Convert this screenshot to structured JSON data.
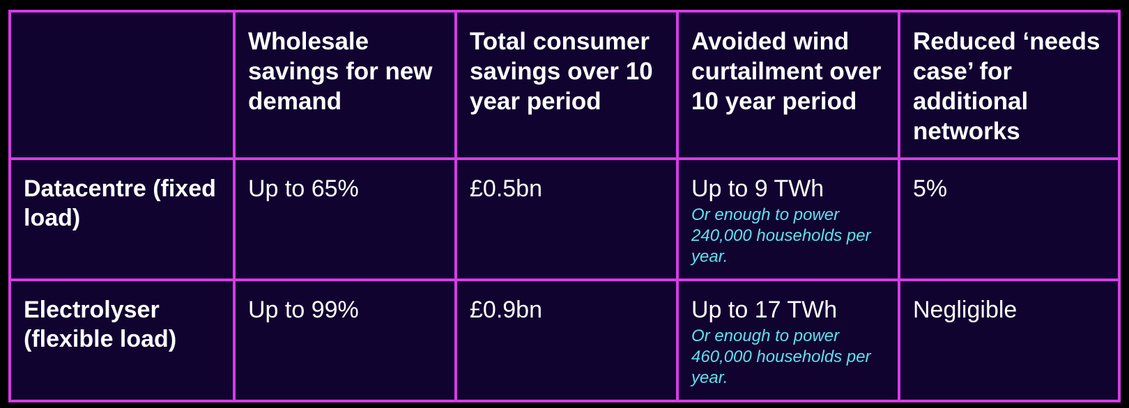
{
  "colors": {
    "background": "#110330",
    "border": "#d63be6",
    "text": "#ffffff",
    "note": "#5fe1ee"
  },
  "table": {
    "headers": [
      "",
      "Wholesale savings for new demand",
      "Total consumer savings over 10 year period",
      "Avoided wind curtailment over 10 year period",
      "Reduced ‘needs case’ for additional networks"
    ],
    "rows": [
      {
        "label": "Datacentre (fixed load)",
        "wholesale_savings": "Up to 65%",
        "consumer_savings": "£0.5bn",
        "avoided_curtailment": "Up to 9 TWh",
        "avoided_curtailment_note": "Or enough to power 240,000 households per year.",
        "reduced_needs_case": "5%"
      },
      {
        "label": "Electrolyser (flexible load)",
        "wholesale_savings": "Up to 99%",
        "consumer_savings": "£0.9bn",
        "avoided_curtailment": "Up to 17 TWh",
        "avoided_curtailment_note": "Or enough to power 460,000 households per year.",
        "reduced_needs_case": "Negligible"
      }
    ]
  }
}
